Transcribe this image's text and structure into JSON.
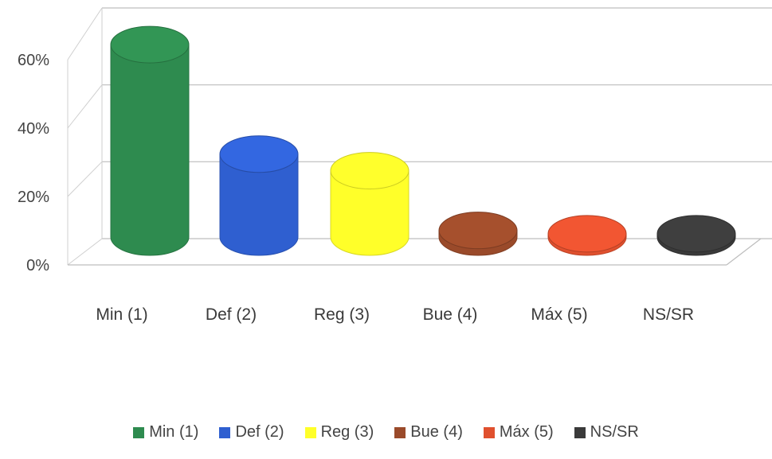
{
  "chart_data": {
    "type": "bar",
    "style": "3d-cylinder",
    "categories": [
      "Min (1)",
      "Def (2)",
      "Reg (3)",
      "Bue (4)",
      "Máx (5)",
      "NS/SR"
    ],
    "values": [
      58,
      25,
      20,
      2,
      1,
      1
    ],
    "unit": "%",
    "ylim": [
      0,
      60
    ],
    "yticks": [
      "0%",
      "20%",
      "40%",
      "60%"
    ],
    "grid": true,
    "legend_position": "bottom",
    "colors": [
      "#2e8b4f",
      "#2f5fd0",
      "#ffff29",
      "#9a4a2a",
      "#e0502e",
      "#3a3a3a"
    ]
  }
}
